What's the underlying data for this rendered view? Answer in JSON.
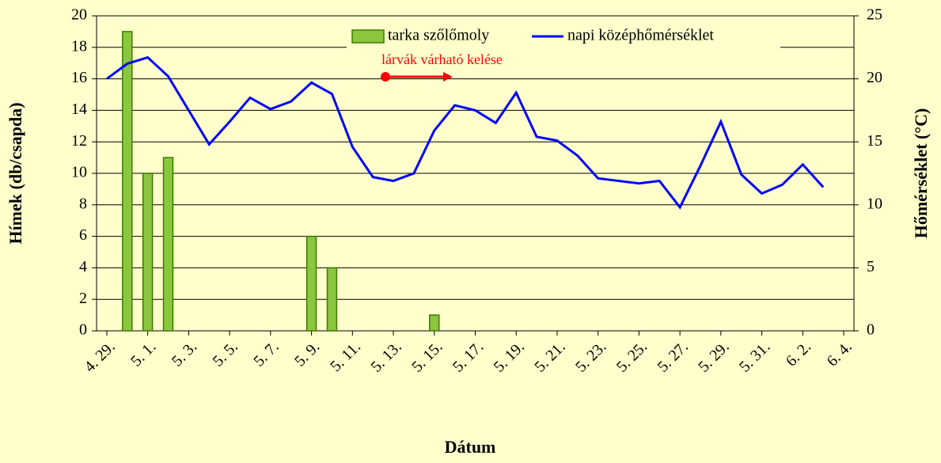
{
  "chart_data": {
    "type": "bar_line",
    "categories": [
      "4. 29.",
      null,
      "5. 1.",
      null,
      "5. 3.",
      null,
      "5. 5.",
      null,
      "5. 7.",
      null,
      "5. 9.",
      null,
      "5. 11.",
      null,
      "5. 13.",
      null,
      "5. 15.",
      null,
      "5. 17.",
      null,
      "5. 19.",
      null,
      "5. 21.",
      null,
      "5. 23.",
      null,
      "5. 25.",
      null,
      "5. 27.",
      null,
      "5. 29.",
      null,
      "5. 31.",
      null,
      "6. 2.",
      null,
      "6. 4."
    ],
    "series": [
      {
        "name": "tarka szőlőmoly",
        "type": "bar",
        "color": "#8cc63f",
        "edge": "#3a7a00",
        "axis": "y",
        "values": [
          0,
          19,
          10,
          11,
          0,
          0,
          0,
          0,
          0,
          0,
          6,
          4,
          0,
          0,
          0,
          0,
          1,
          0,
          0,
          0,
          0,
          0,
          0,
          0,
          0,
          0,
          0,
          0,
          0,
          0,
          0,
          0,
          0,
          0,
          0,
          0,
          0
        ]
      },
      {
        "name": "napi középhőmérséklet",
        "type": "line",
        "color": "#0000ff",
        "axis": "y2",
        "values": [
          20,
          21.2,
          21.7,
          20.2,
          17.5,
          14.8,
          16.6,
          18.5,
          17.6,
          18.2,
          19.7,
          18.8,
          14.6,
          12.2,
          11.9,
          12.5,
          15.9,
          17.9,
          17.5,
          16.5,
          18.9,
          15.4,
          15.1,
          13.9,
          12.1,
          11.9,
          11.7,
          11.9,
          9.8,
          13.1,
          16.6,
          12.4,
          10.9,
          11.6,
          13.2,
          11.4,
          null
        ]
      }
    ],
    "ylabel": "Hímek (db/csapda)",
    "y2label": "Hőmérséklet (°C)",
    "xlabel": "Dátum",
    "ylim": [
      0,
      20
    ],
    "yticks": [
      0,
      2,
      4,
      6,
      8,
      10,
      12,
      14,
      16,
      18,
      20
    ],
    "y2lim": [
      0,
      25
    ],
    "y2ticks": [
      0,
      5,
      10,
      15,
      20,
      25
    ],
    "annotation": "lárvák várható kelése",
    "annotation_color": "#ff0000",
    "grid": true,
    "legend": "top"
  }
}
